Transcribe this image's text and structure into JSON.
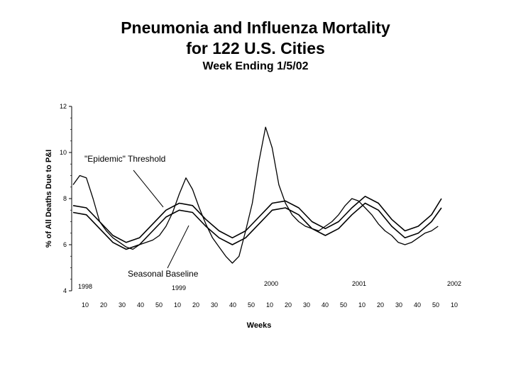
{
  "chart_data": {
    "type": "line",
    "title": "Pneumonia and Influenza Mortality",
    "title_line2": "for 122 U.S. Cities",
    "subtitle": "Week Ending 1/5/02",
    "ylabel": "% of All Deaths Due to P&I",
    "xlabel": "Weeks",
    "ylim": [
      4,
      12
    ],
    "yticks": [
      4,
      6,
      8,
      10,
      12
    ],
    "grid": false,
    "x_axis": {
      "week_ticks": [
        "10",
        "20",
        "30",
        "40",
        "50",
        "10",
        "20",
        "30",
        "40",
        "50",
        "10",
        "20",
        "30",
        "40",
        "50",
        "10",
        "20",
        "30",
        "40",
        "50",
        "10"
      ],
      "year_labels": [
        "1998",
        "1999",
        "2000",
        "2001",
        "2002"
      ]
    },
    "annotations": [
      "\"Epidemic\" Threshold",
      "Seasonal Baseline"
    ],
    "series": [
      {
        "role": "observed",
        "points": [
          [
            0,
            8.6
          ],
          [
            4,
            9.0
          ],
          [
            8,
            8.9
          ],
          [
            12,
            8.0
          ],
          [
            16,
            7.0
          ],
          [
            20,
            6.6
          ],
          [
            24,
            6.3
          ],
          [
            28,
            6.1
          ],
          [
            32,
            5.9
          ],
          [
            36,
            5.8
          ],
          [
            40,
            6.0
          ],
          [
            44,
            6.1
          ],
          [
            48,
            6.2
          ],
          [
            52,
            6.4
          ],
          [
            56,
            6.8
          ],
          [
            60,
            7.4
          ],
          [
            64,
            8.2
          ],
          [
            68,
            8.9
          ],
          [
            72,
            8.4
          ],
          [
            76,
            7.6
          ],
          [
            80,
            6.9
          ],
          [
            84,
            6.3
          ],
          [
            88,
            5.9
          ],
          [
            92,
            5.5
          ],
          [
            96,
            5.2
          ],
          [
            100,
            5.5
          ],
          [
            104,
            6.6
          ],
          [
            108,
            7.8
          ],
          [
            112,
            9.6
          ],
          [
            116,
            11.1
          ],
          [
            120,
            10.2
          ],
          [
            124,
            8.6
          ],
          [
            128,
            7.8
          ],
          [
            132,
            7.3
          ],
          [
            136,
            7.0
          ],
          [
            140,
            6.8
          ],
          [
            144,
            6.7
          ],
          [
            148,
            6.6
          ],
          [
            152,
            6.8
          ],
          [
            156,
            7.0
          ],
          [
            160,
            7.3
          ],
          [
            164,
            7.7
          ],
          [
            168,
            8.0
          ],
          [
            172,
            7.9
          ],
          [
            176,
            7.6
          ],
          [
            180,
            7.3
          ],
          [
            184,
            6.9
          ],
          [
            188,
            6.6
          ],
          [
            192,
            6.4
          ],
          [
            196,
            6.1
          ],
          [
            200,
            6.0
          ],
          [
            204,
            6.1
          ],
          [
            208,
            6.3
          ],
          [
            212,
            6.5
          ],
          [
            216,
            6.6
          ],
          [
            220,
            6.8
          ]
        ]
      },
      {
        "role": "epidemic_threshold",
        "points": [
          [
            0,
            7.7
          ],
          [
            8,
            7.6
          ],
          [
            16,
            7.0
          ],
          [
            24,
            6.4
          ],
          [
            32,
            6.1
          ],
          [
            40,
            6.3
          ],
          [
            48,
            6.9
          ],
          [
            56,
            7.5
          ],
          [
            64,
            7.8
          ],
          [
            72,
            7.7
          ],
          [
            80,
            7.1
          ],
          [
            88,
            6.6
          ],
          [
            96,
            6.3
          ],
          [
            104,
            6.6
          ],
          [
            112,
            7.2
          ],
          [
            120,
            7.8
          ],
          [
            128,
            7.9
          ],
          [
            136,
            7.6
          ],
          [
            144,
            7.0
          ],
          [
            152,
            6.7
          ],
          [
            160,
            7.0
          ],
          [
            168,
            7.6
          ],
          [
            176,
            8.1
          ],
          [
            184,
            7.8
          ],
          [
            192,
            7.1
          ],
          [
            200,
            6.6
          ],
          [
            208,
            6.8
          ],
          [
            216,
            7.3
          ],
          [
            222,
            8.0
          ]
        ]
      },
      {
        "role": "seasonal_baseline",
        "points": [
          [
            0,
            7.4
          ],
          [
            8,
            7.3
          ],
          [
            16,
            6.7
          ],
          [
            24,
            6.1
          ],
          [
            32,
            5.8
          ],
          [
            40,
            6.0
          ],
          [
            48,
            6.6
          ],
          [
            56,
            7.2
          ],
          [
            64,
            7.5
          ],
          [
            72,
            7.4
          ],
          [
            80,
            6.8
          ],
          [
            88,
            6.3
          ],
          [
            96,
            6.0
          ],
          [
            104,
            6.3
          ],
          [
            112,
            6.9
          ],
          [
            120,
            7.5
          ],
          [
            128,
            7.6
          ],
          [
            136,
            7.3
          ],
          [
            144,
            6.7
          ],
          [
            152,
            6.4
          ],
          [
            160,
            6.7
          ],
          [
            168,
            7.3
          ],
          [
            176,
            7.8
          ],
          [
            184,
            7.5
          ],
          [
            192,
            6.8
          ],
          [
            200,
            6.3
          ],
          [
            208,
            6.5
          ],
          [
            216,
            7.0
          ],
          [
            222,
            7.6
          ]
        ]
      }
    ]
  }
}
